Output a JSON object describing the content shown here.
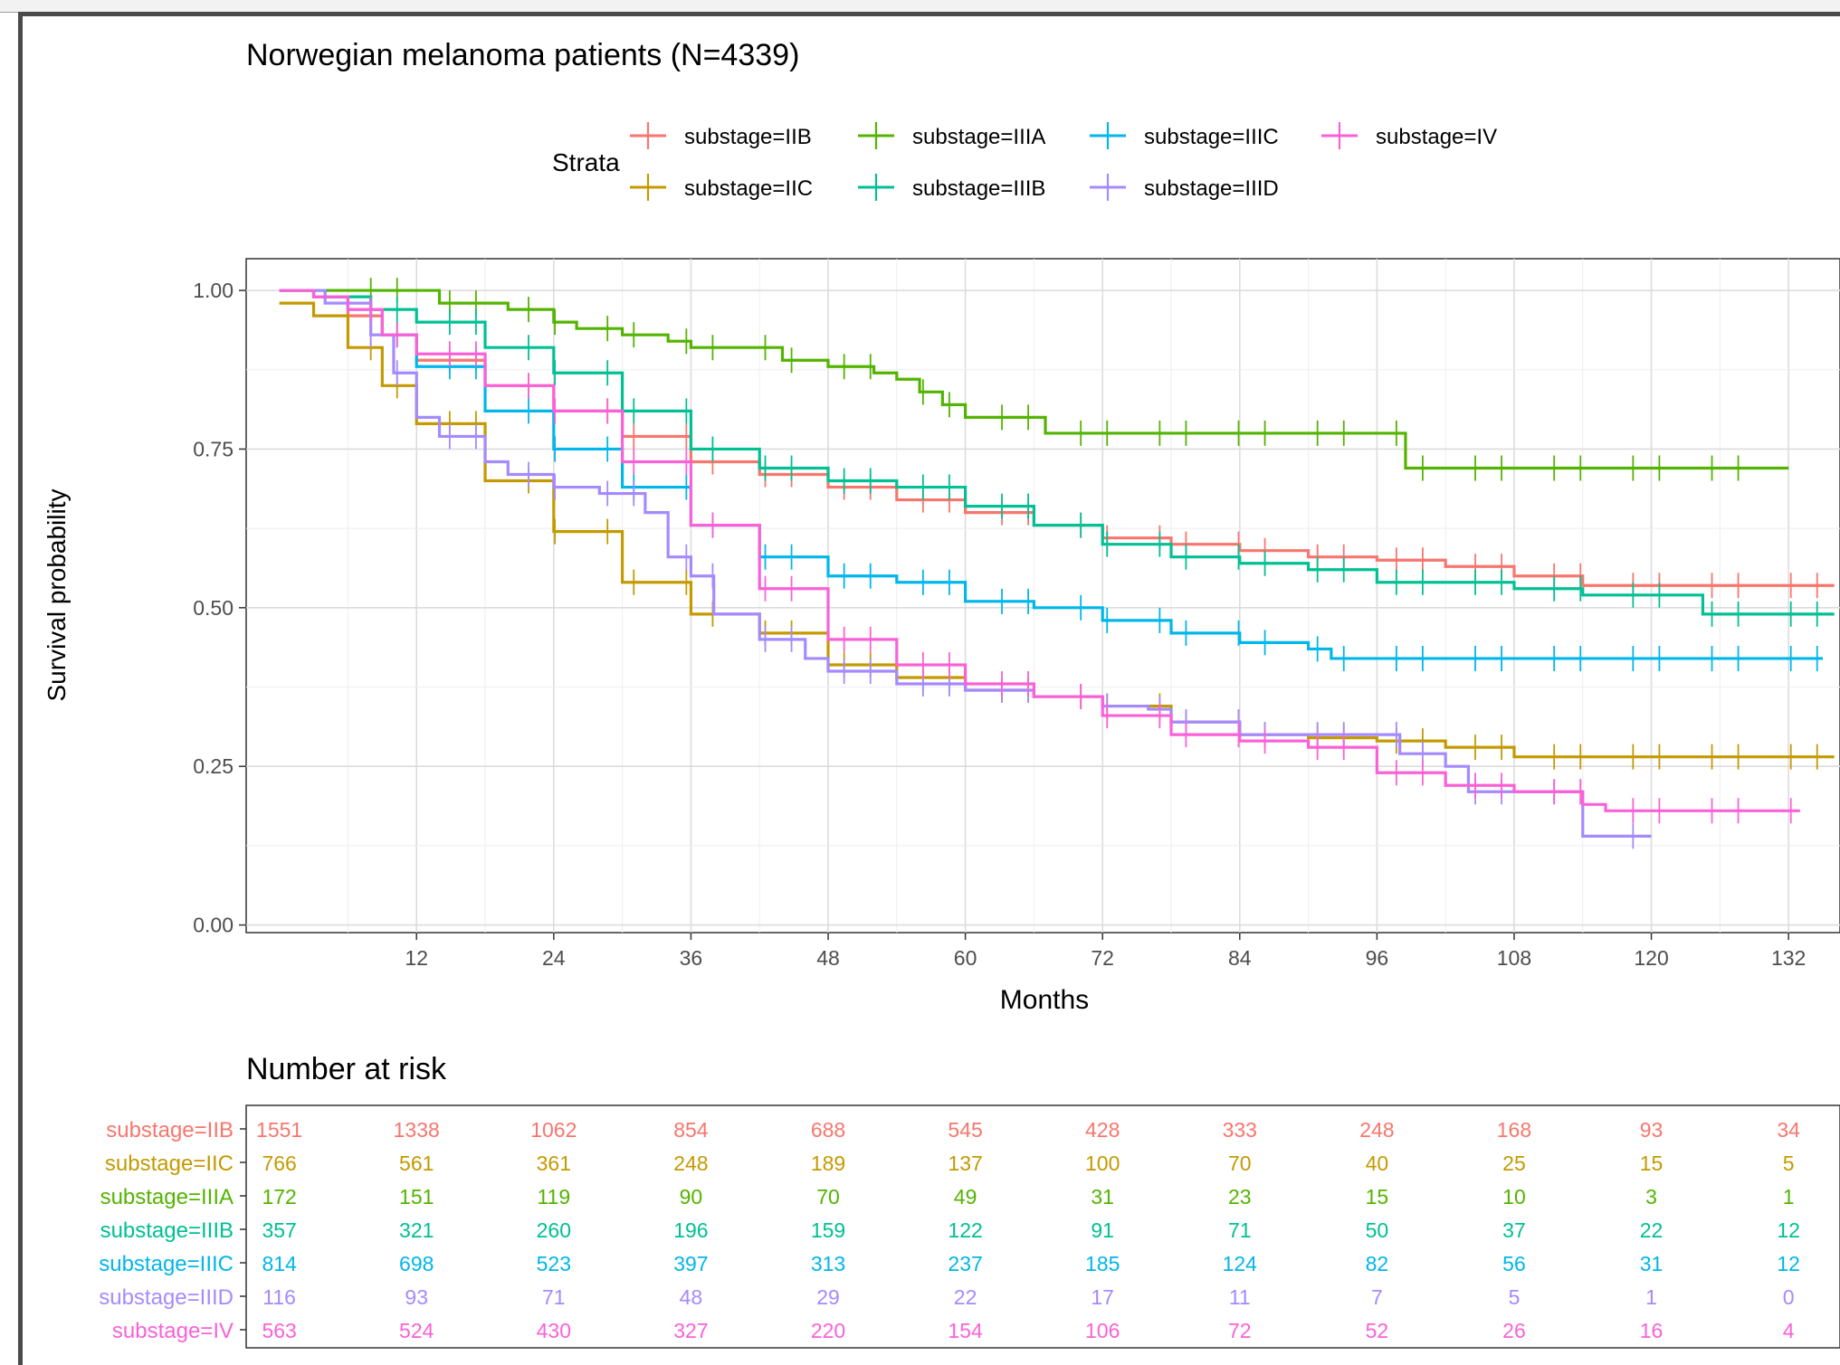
{
  "chart_data": {
    "type": "line",
    "subtype": "kaplan-meier survival curve",
    "title": "Norwegian melanoma patients (N=4339)",
    "xlabel": "Months",
    "ylabel": "Survival probability",
    "xlim": [
      0,
      138
    ],
    "ylim": [
      0,
      1.0
    ],
    "xticks": [
      "12",
      "24",
      "36",
      "48",
      "60",
      "72",
      "84",
      "96",
      "108",
      "120",
      "132"
    ],
    "yticks": [
      "0.00",
      "0.25",
      "0.50",
      "0.75",
      "1.00"
    ],
    "grid": true,
    "legend": {
      "title": "Strata",
      "placement": "top",
      "entries": [
        {
          "label": "substage=IIB",
          "color": "#F8766D"
        },
        {
          "label": "substage=IIC",
          "color": "#C49A00"
        },
        {
          "label": "substage=IIIA",
          "color": "#53B400"
        },
        {
          "label": "substage=IIIB",
          "color": "#00C094"
        },
        {
          "label": "substage=IIIC",
          "color": "#00B6EB"
        },
        {
          "label": "substage=IIID",
          "color": "#A58AFF"
        },
        {
          "label": "substage=IV",
          "color": "#FB61D7"
        }
      ]
    },
    "series": [
      {
        "name": "substage=IIB",
        "color": "#F8766D",
        "points": [
          [
            0,
            1.0
          ],
          [
            3,
            0.99
          ],
          [
            6,
            0.96
          ],
          [
            9,
            0.93
          ],
          [
            12,
            0.89
          ],
          [
            18,
            0.85
          ],
          [
            24,
            0.81
          ],
          [
            30,
            0.77
          ],
          [
            36,
            0.73
          ],
          [
            42,
            0.71
          ],
          [
            48,
            0.69
          ],
          [
            54,
            0.67
          ],
          [
            60,
            0.65
          ],
          [
            66,
            0.63
          ],
          [
            72,
            0.61
          ],
          [
            78,
            0.6
          ],
          [
            84,
            0.59
          ],
          [
            90,
            0.58
          ],
          [
            96,
            0.575
          ],
          [
            102,
            0.565
          ],
          [
            108,
            0.55
          ],
          [
            114,
            0.535
          ],
          [
            120,
            0.535
          ],
          [
            132,
            0.535
          ],
          [
            136,
            0.535
          ]
        ]
      },
      {
        "name": "substage=IIC",
        "color": "#C49A00",
        "points": [
          [
            0,
            0.98
          ],
          [
            3,
            0.96
          ],
          [
            6,
            0.91
          ],
          [
            9,
            0.85
          ],
          [
            12,
            0.79
          ],
          [
            18,
            0.7
          ],
          [
            24,
            0.62
          ],
          [
            30,
            0.54
          ],
          [
            36,
            0.49
          ],
          [
            42,
            0.46
          ],
          [
            48,
            0.41
          ],
          [
            54,
            0.39
          ],
          [
            60,
            0.37
          ],
          [
            66,
            0.36
          ],
          [
            72,
            0.345
          ],
          [
            78,
            0.32
          ],
          [
            84,
            0.3
          ],
          [
            90,
            0.295
          ],
          [
            96,
            0.29
          ],
          [
            102,
            0.28
          ],
          [
            108,
            0.265
          ],
          [
            114,
            0.265
          ],
          [
            120,
            0.265
          ],
          [
            132,
            0.265
          ],
          [
            136,
            0.265
          ]
        ]
      },
      {
        "name": "substage=IIIA",
        "color": "#53B400",
        "points": [
          [
            0,
            1.0
          ],
          [
            10,
            1.0
          ],
          [
            14,
            0.98
          ],
          [
            20,
            0.97
          ],
          [
            24,
            0.95
          ],
          [
            26,
            0.94
          ],
          [
            30,
            0.93
          ],
          [
            34,
            0.92
          ],
          [
            36,
            0.91
          ],
          [
            44,
            0.89
          ],
          [
            48,
            0.88
          ],
          [
            52,
            0.87
          ],
          [
            54,
            0.86
          ],
          [
            56,
            0.84
          ],
          [
            58,
            0.82
          ],
          [
            60,
            0.8
          ],
          [
            66,
            0.8
          ],
          [
            67,
            0.775
          ],
          [
            98,
            0.775
          ],
          [
            98.5,
            0.72
          ],
          [
            132,
            0.72
          ]
        ]
      },
      {
        "name": "substage=IIIB",
        "color": "#00C094",
        "points": [
          [
            0,
            1.0
          ],
          [
            4,
            0.99
          ],
          [
            8,
            0.97
          ],
          [
            12,
            0.95
          ],
          [
            18,
            0.91
          ],
          [
            24,
            0.87
          ],
          [
            30,
            0.81
          ],
          [
            36,
            0.75
          ],
          [
            42,
            0.72
          ],
          [
            48,
            0.7
          ],
          [
            54,
            0.69
          ],
          [
            60,
            0.66
          ],
          [
            66,
            0.63
          ],
          [
            72,
            0.6
          ],
          [
            78,
            0.58
          ],
          [
            84,
            0.57
          ],
          [
            90,
            0.56
          ],
          [
            96,
            0.54
          ],
          [
            102,
            0.54
          ],
          [
            108,
            0.53
          ],
          [
            114,
            0.52
          ],
          [
            120,
            0.52
          ],
          [
            124,
            0.52
          ],
          [
            124.5,
            0.49
          ],
          [
            132,
            0.49
          ],
          [
            136,
            0.49
          ]
        ]
      },
      {
        "name": "substage=IIIC",
        "color": "#00B6EB",
        "points": [
          [
            0,
            1.0
          ],
          [
            3,
            0.99
          ],
          [
            6,
            0.97
          ],
          [
            9,
            0.93
          ],
          [
            12,
            0.88
          ],
          [
            18,
            0.81
          ],
          [
            24,
            0.75
          ],
          [
            30,
            0.69
          ],
          [
            36,
            0.63
          ],
          [
            42,
            0.58
          ],
          [
            48,
            0.55
          ],
          [
            54,
            0.54
          ],
          [
            60,
            0.51
          ],
          [
            66,
            0.5
          ],
          [
            72,
            0.48
          ],
          [
            78,
            0.46
          ],
          [
            84,
            0.445
          ],
          [
            90,
            0.435
          ],
          [
            92,
            0.42
          ],
          [
            96,
            0.42
          ],
          [
            108,
            0.42
          ],
          [
            120,
            0.42
          ],
          [
            135,
            0.42
          ]
        ]
      },
      {
        "name": "substage=IIID",
        "color": "#A58AFF",
        "points": [
          [
            0,
            1.0
          ],
          [
            4,
            0.98
          ],
          [
            8,
            0.93
          ],
          [
            10,
            0.87
          ],
          [
            12,
            0.8
          ],
          [
            14,
            0.77
          ],
          [
            18,
            0.73
          ],
          [
            20,
            0.71
          ],
          [
            24,
            0.69
          ],
          [
            28,
            0.68
          ],
          [
            30,
            0.68
          ],
          [
            32,
            0.65
          ],
          [
            34,
            0.58
          ],
          [
            36,
            0.55
          ],
          [
            38,
            0.49
          ],
          [
            42,
            0.45
          ],
          [
            46,
            0.42
          ],
          [
            48,
            0.4
          ],
          [
            54,
            0.38
          ],
          [
            60,
            0.37
          ],
          [
            66,
            0.36
          ],
          [
            72,
            0.345
          ],
          [
            76,
            0.34
          ],
          [
            78,
            0.32
          ],
          [
            84,
            0.3
          ],
          [
            90,
            0.3
          ],
          [
            96,
            0.3
          ],
          [
            98,
            0.27
          ],
          [
            102,
            0.25
          ],
          [
            104,
            0.21
          ],
          [
            110,
            0.21
          ],
          [
            114,
            0.14
          ],
          [
            118,
            0.14
          ],
          [
            120,
            0.14
          ]
        ]
      },
      {
        "name": "substage=IV",
        "color": "#FB61D7",
        "points": [
          [
            0,
            1.0
          ],
          [
            3,
            0.99
          ],
          [
            6,
            0.97
          ],
          [
            9,
            0.93
          ],
          [
            12,
            0.9
          ],
          [
            18,
            0.85
          ],
          [
            24,
            0.81
          ],
          [
            30,
            0.73
          ],
          [
            36,
            0.63
          ],
          [
            42,
            0.53
          ],
          [
            48,
            0.45
          ],
          [
            54,
            0.41
          ],
          [
            60,
            0.38
          ],
          [
            66,
            0.36
          ],
          [
            72,
            0.33
          ],
          [
            78,
            0.3
          ],
          [
            84,
            0.29
          ],
          [
            90,
            0.28
          ],
          [
            96,
            0.24
          ],
          [
            102,
            0.22
          ],
          [
            108,
            0.21
          ],
          [
            112,
            0.21
          ],
          [
            114,
            0.19
          ],
          [
            116,
            0.18
          ],
          [
            120,
            0.18
          ],
          [
            130,
            0.18
          ],
          [
            133,
            0.18
          ]
        ]
      }
    ],
    "risk_table": {
      "title": "Number at risk",
      "times": [
        0,
        12,
        24,
        36,
        48,
        60,
        72,
        84,
        96,
        108,
        120,
        132
      ],
      "rows": [
        {
          "label": "substage=IIB",
          "color": "#F8766D",
          "values": [
            "1551",
            "1338",
            "1062",
            "854",
            "688",
            "545",
            "428",
            "333",
            "248",
            "168",
            "93",
            "34"
          ]
        },
        {
          "label": "substage=IIC",
          "color": "#C49A00",
          "values": [
            "766",
            "561",
            "361",
            "248",
            "189",
            "137",
            "100",
            "70",
            "40",
            "25",
            "15",
            "5"
          ]
        },
        {
          "label": "substage=IIIA",
          "color": "#53B400",
          "values": [
            "172",
            "151",
            "119",
            "90",
            "70",
            "49",
            "31",
            "23",
            "15",
            "10",
            "3",
            "1"
          ]
        },
        {
          "label": "substage=IIIB",
          "color": "#00C094",
          "values": [
            "357",
            "321",
            "260",
            "196",
            "159",
            "122",
            "91",
            "71",
            "50",
            "37",
            "22",
            "12"
          ]
        },
        {
          "label": "substage=IIIC",
          "color": "#00B6EB",
          "values": [
            "814",
            "698",
            "523",
            "397",
            "313",
            "237",
            "185",
            "124",
            "82",
            "56",
            "31",
            "12"
          ]
        },
        {
          "label": "substage=IIID",
          "color": "#A58AFF",
          "values": [
            "116",
            "93",
            "71",
            "48",
            "29",
            "22",
            "17",
            "11",
            "7",
            "5",
            "1",
            "0"
          ]
        },
        {
          "label": "substage=IV",
          "color": "#FB61D7",
          "values": [
            "563",
            "524",
            "430",
            "327",
            "220",
            "154",
            "106",
            "72",
            "52",
            "26",
            "16",
            "4"
          ]
        }
      ]
    }
  }
}
